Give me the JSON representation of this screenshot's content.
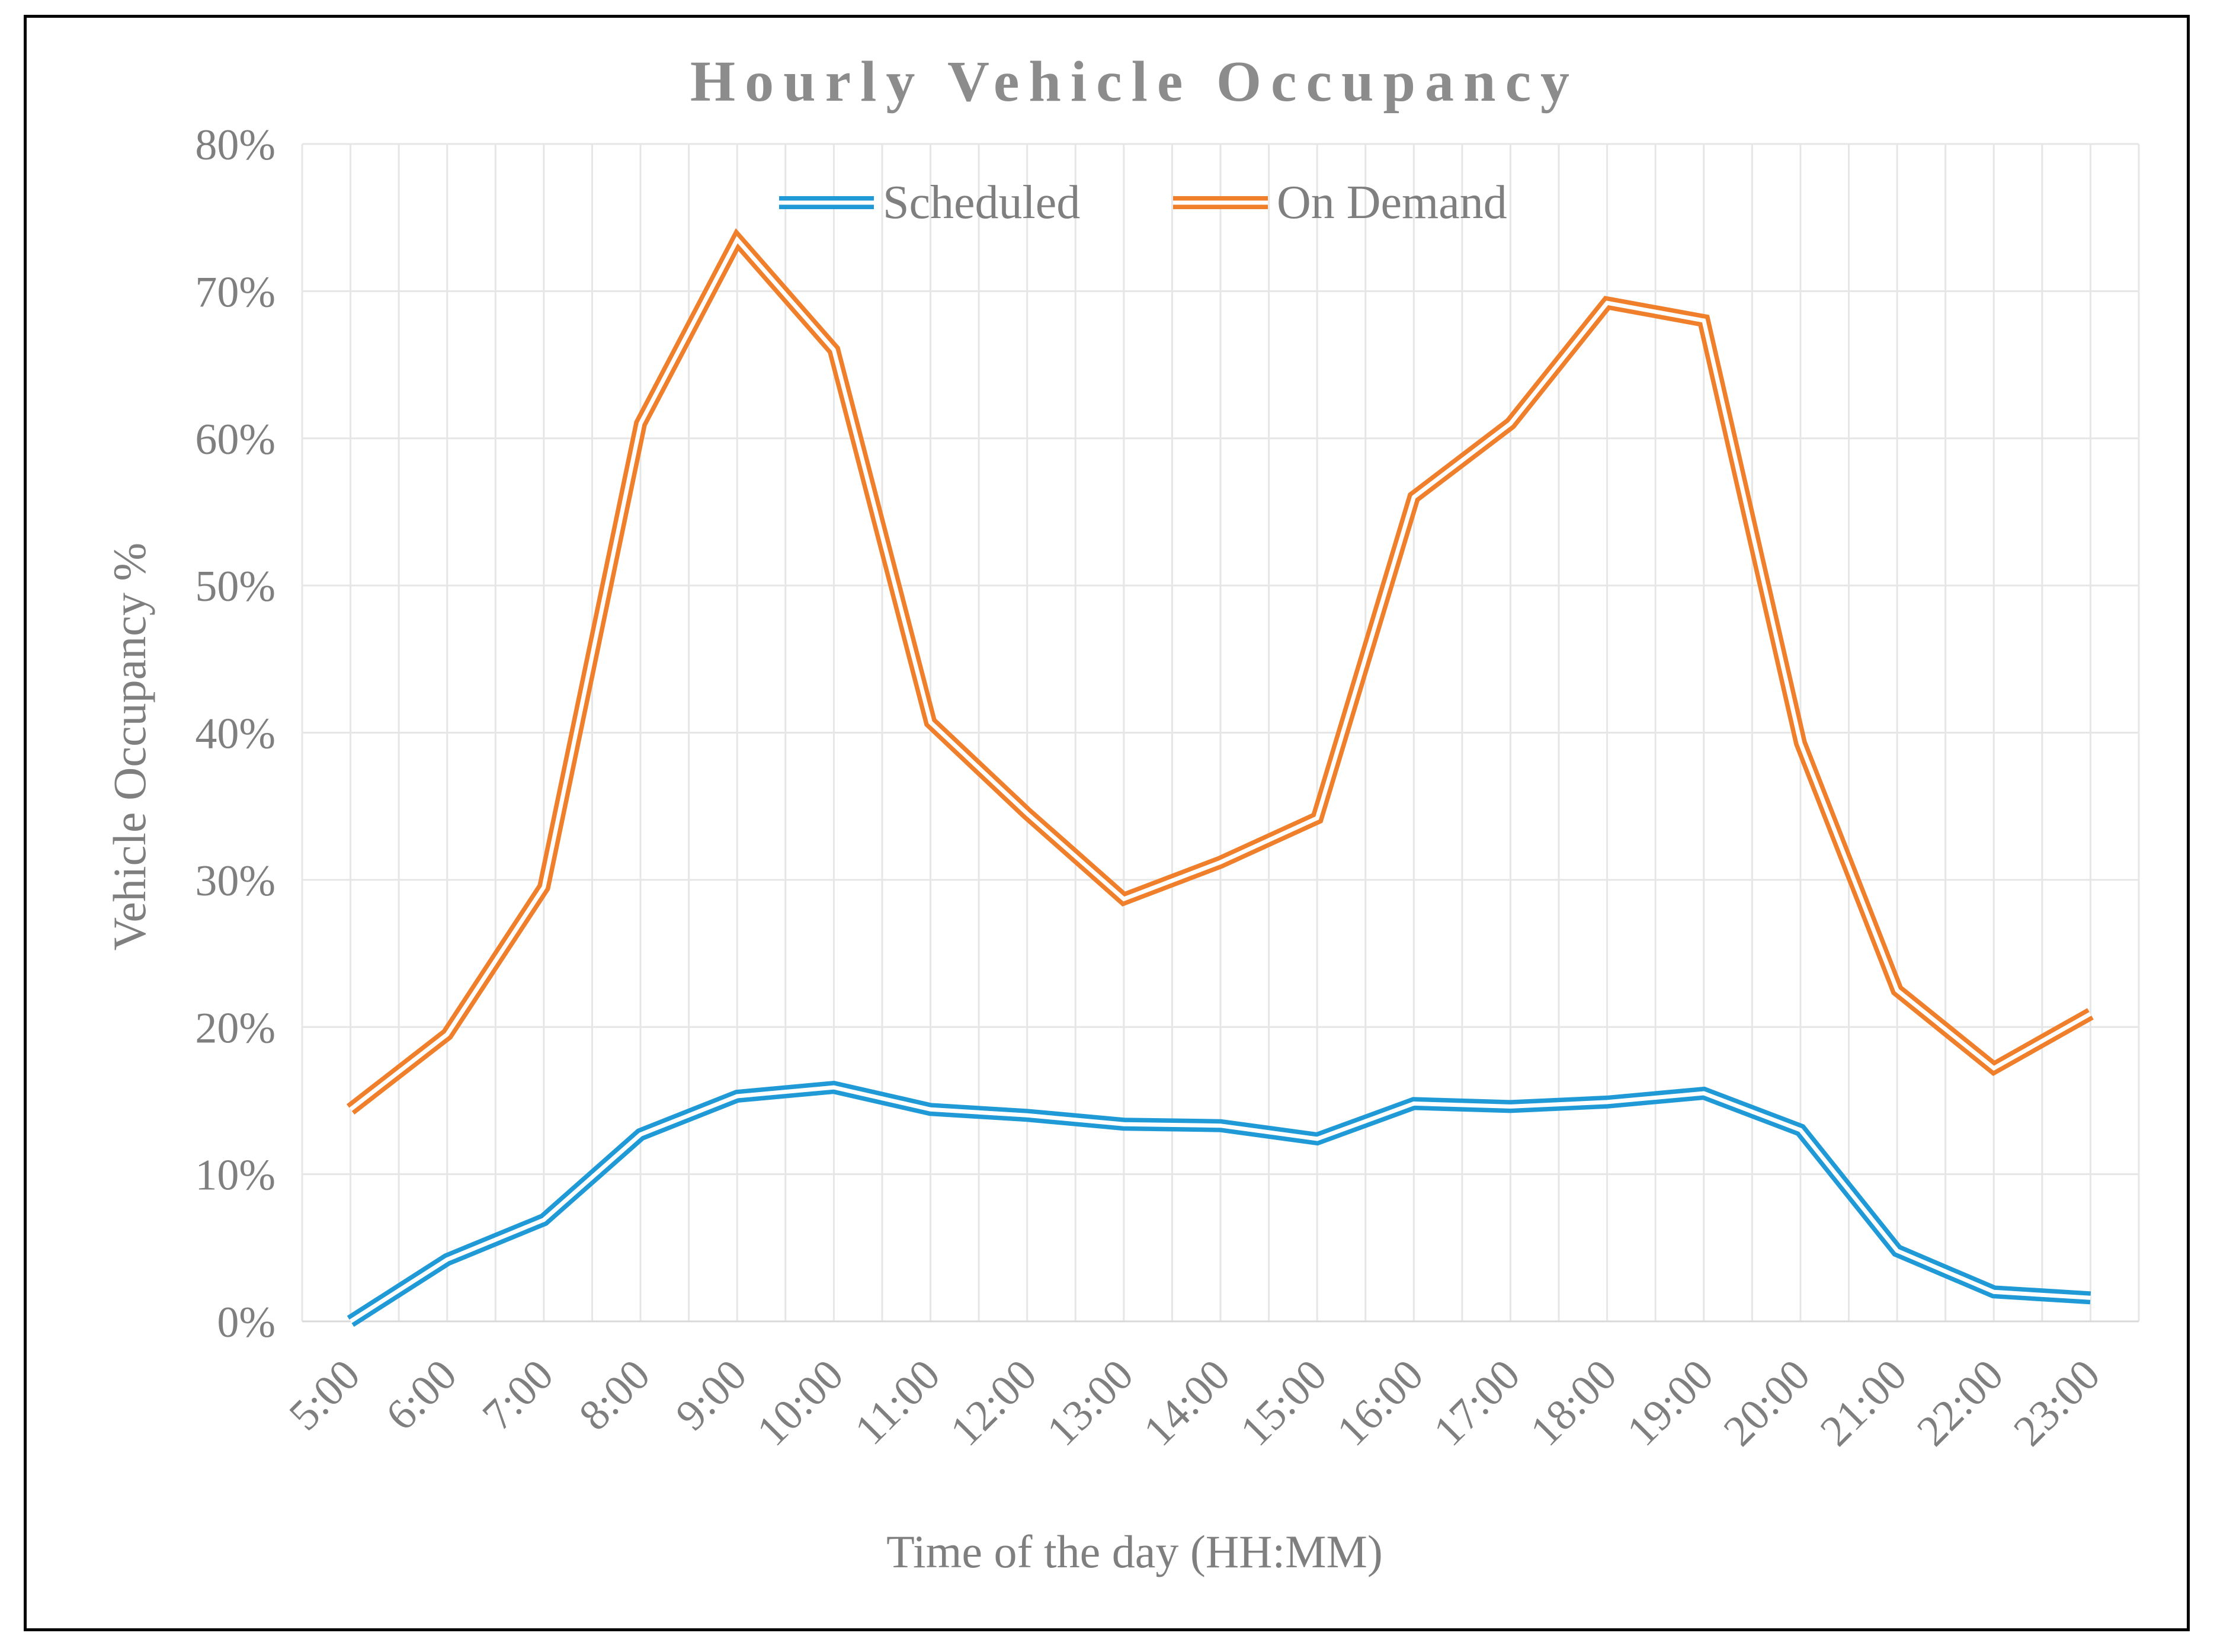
{
  "chart_data": {
    "type": "line",
    "title": "Hourly Vehicle Occupancy",
    "xlabel": "Time of the day (HH:MM)",
    "ylabel": "Vehicle Occupancy %",
    "categories": [
      "5:00",
      "6:00",
      "7:00",
      "8:00",
      "9:00",
      "10:00",
      "11:00",
      "12:00",
      "13:00",
      "14:00",
      "15:00",
      "16:00",
      "17:00",
      "18:00",
      "19:00",
      "20:00",
      "21:00",
      "22:00",
      "23:00"
    ],
    "ylim": [
      0,
      80
    ],
    "yticks": [
      0,
      10,
      20,
      30,
      40,
      50,
      60,
      70,
      80
    ],
    "ytick_labels": [
      "0%",
      "10%",
      "20%",
      "30%",
      "40%",
      "50%",
      "60%",
      "70%",
      "80%"
    ],
    "grid": true,
    "legend_position": "top-center",
    "series": [
      {
        "name": "Scheduled",
        "color": "#1f9ad6",
        "values": [
          0,
          4.2,
          6.9,
          12.7,
          15.3,
          15.9,
          14.4,
          14.0,
          13.4,
          13.3,
          12.4,
          14.8,
          14.6,
          14.9,
          15.5,
          13.0,
          4.8,
          2.0,
          1.6
        ]
      },
      {
        "name": "On Demand",
        "color": "#f07f2b",
        "values": [
          14.4,
          19.5,
          29.5,
          61.0,
          73.5,
          66.0,
          40.7,
          34.5,
          28.7,
          31.2,
          34.2,
          56.0,
          61.0,
          69.2,
          68.0,
          39.3,
          22.5,
          17.2,
          20.9
        ]
      }
    ]
  }
}
